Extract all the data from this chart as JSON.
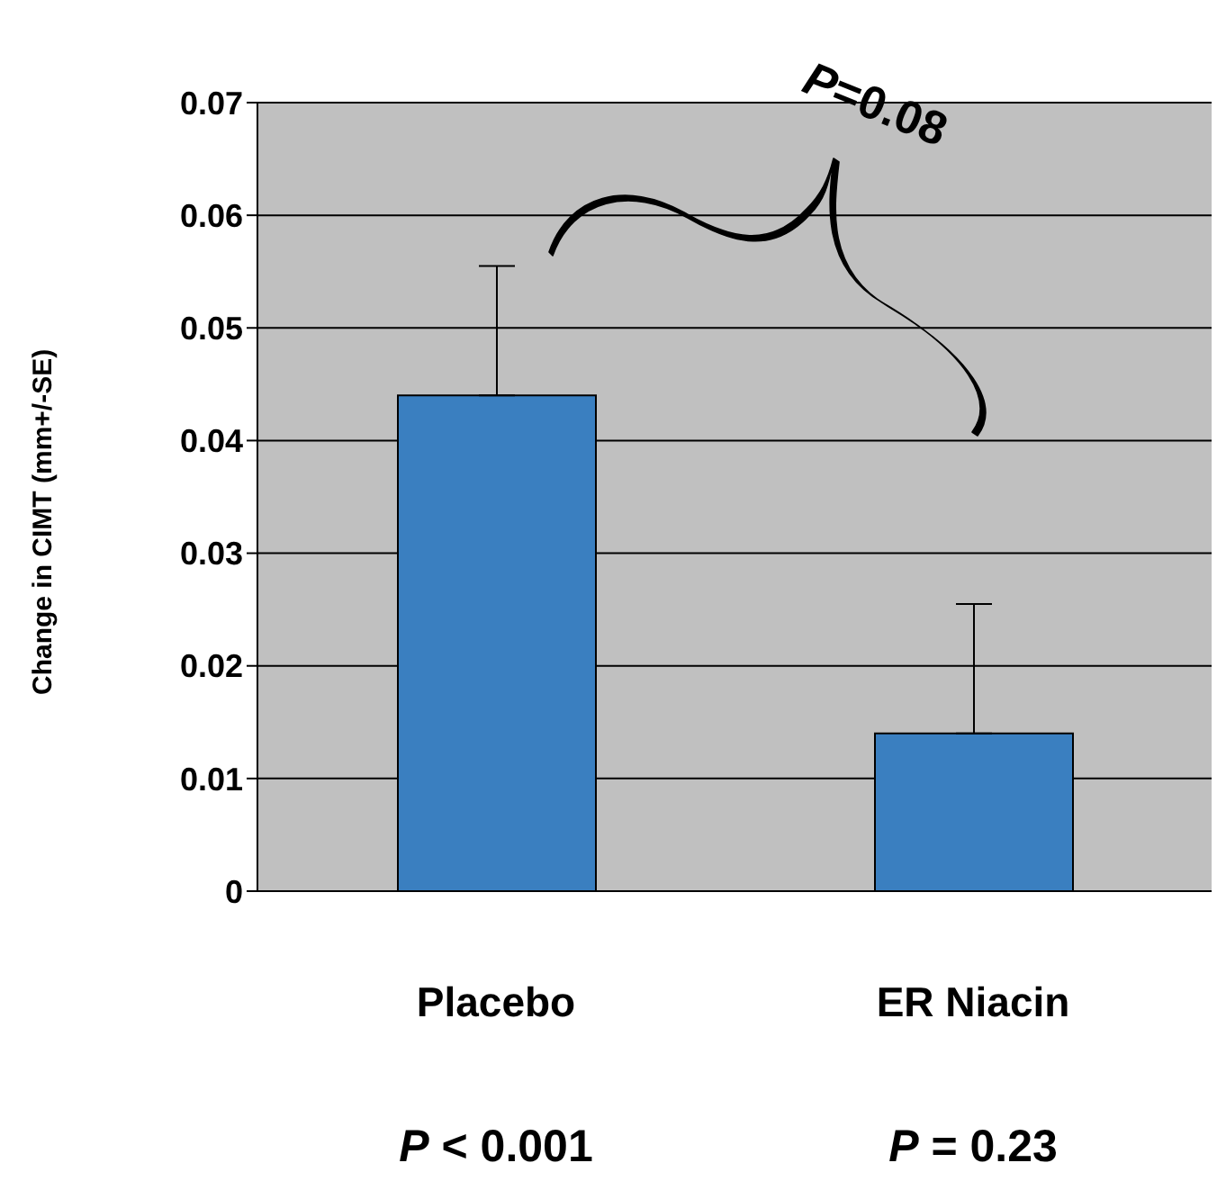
{
  "chart_data": {
    "type": "bar",
    "ylabel": "Change in CIMT (mm+/-SE)",
    "categories": [
      "Placebo",
      "ER Niacin"
    ],
    "values": [
      0.044,
      0.014
    ],
    "errors": [
      [
        0.044,
        0.0555
      ],
      [
        0.014,
        0.0255
      ]
    ],
    "color": "#3a7fc0",
    "ylim": [
      0,
      0.07
    ],
    "yticks": [
      0,
      0.01,
      0.02,
      0.03,
      0.04,
      0.05,
      0.06,
      0.07
    ],
    "grid": "y",
    "annotations": [
      "P=0.08",
      "P < 0.001",
      "P = 0.23"
    ]
  }
}
